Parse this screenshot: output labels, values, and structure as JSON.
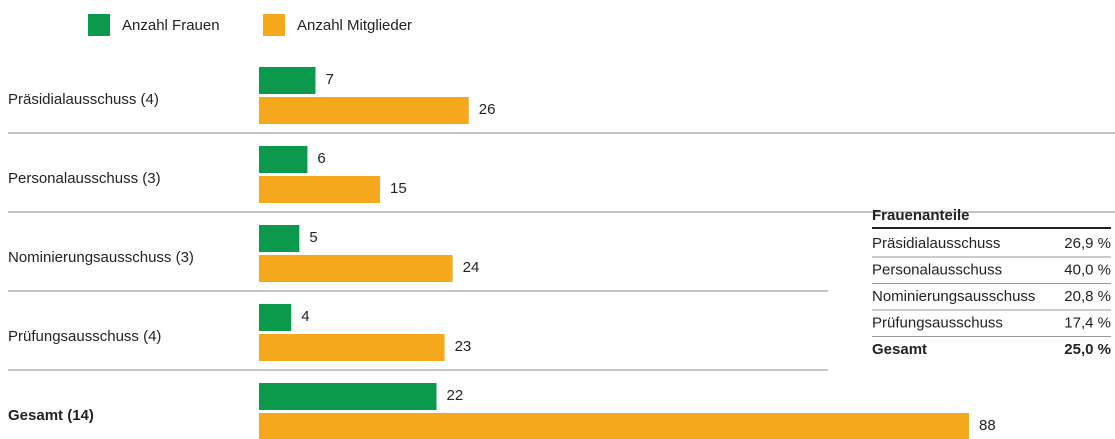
{
  "chart_data": {
    "type": "hbar",
    "categories": [
      "Präsidialausschuss (4)",
      "Personalausschuss (3)",
      "Nominierungsausschuss (3)",
      "Prüfungsausschuss (4)",
      "Gesamt (14)"
    ],
    "series": [
      {
        "name": "Anzahl Frauen",
        "color": "#0b9a4b",
        "values": [
          7,
          6,
          5,
          4,
          22
        ]
      },
      {
        "name": "Anzahl Mitglieder",
        "color": "#f6a81d",
        "values": [
          26,
          15,
          24,
          23,
          88
        ]
      }
    ]
  },
  "table": {
    "title": "Frauenanteile",
    "rows": [
      [
        "Präsidialausschuss",
        "26,9 %"
      ],
      [
        "Personalausschuss",
        "40,0 %"
      ],
      [
        "Nominierungsausschuss",
        "20,8 %"
      ],
      [
        "Prüfungsausschuss",
        "17,4 %"
      ],
      [
        "Gesamt",
        "25,0 %"
      ]
    ]
  }
}
